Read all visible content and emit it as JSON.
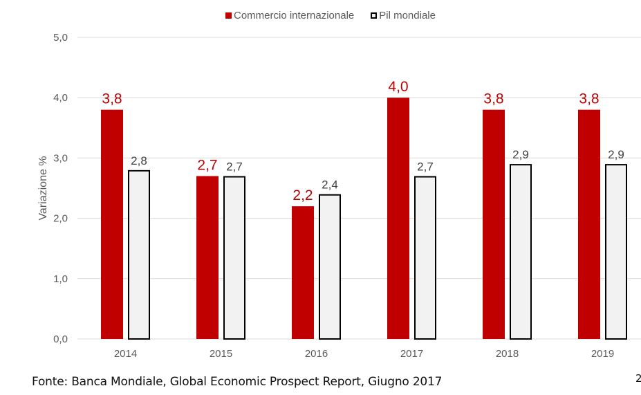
{
  "chart_data": {
    "type": "bar",
    "title": "",
    "xlabel": "",
    "ylabel": "Variazione %",
    "ylim": [
      0,
      5
    ],
    "yticks": [
      "0,0",
      "1,0",
      "2,0",
      "3,0",
      "4,0",
      "5,0"
    ],
    "ytick_values": [
      0,
      1,
      2,
      3,
      4,
      5
    ],
    "grid": true,
    "legend_position": "top-center",
    "categories": [
      "2014",
      "2015",
      "2016",
      "2017",
      "2018",
      "2019"
    ],
    "series": [
      {
        "name": "Commercio internazionale",
        "values": [
          3.8,
          2.7,
          2.2,
          4.0,
          3.8,
          3.8
        ],
        "labels": [
          "3,8",
          "2,7",
          "2,2",
          "4,0",
          "3,8",
          "3,8"
        ],
        "color": "#C00000",
        "label_color": "#C00000"
      },
      {
        "name": "Pil mondiale",
        "values": [
          2.8,
          2.7,
          2.4,
          2.7,
          2.9,
          2.9
        ],
        "labels": [
          "2,8",
          "2,7",
          "2,4",
          "2,7",
          "2,9",
          "2,9"
        ],
        "color": "#F2F2F2",
        "border_color": "#000000",
        "label_color": "#404040"
      }
    ]
  },
  "footer": {
    "source": "Fonte: Banca Mondiale, Global Economic Prospect Report, Giugno 2017",
    "page_number": "2"
  }
}
